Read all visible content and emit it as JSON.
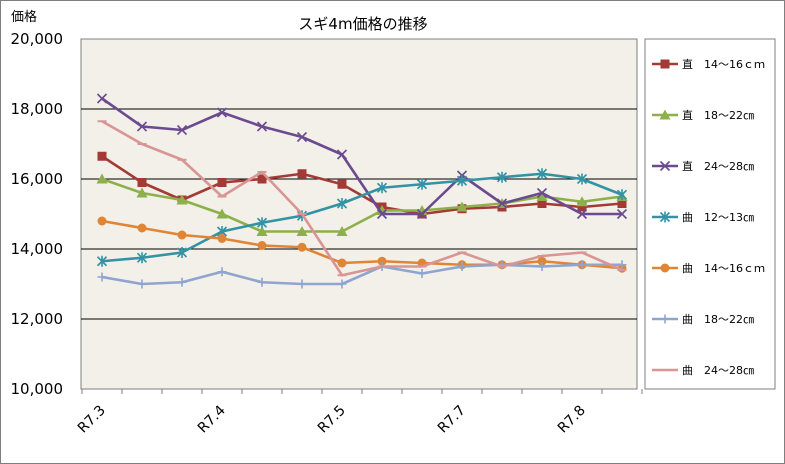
{
  "chart_data": {
    "type": "line",
    "title": "スギ4m価格の推移",
    "ylabel": "価格",
    "ylim": [
      10000,
      20000
    ],
    "yticks": [
      10000,
      12000,
      14000,
      16000,
      18000,
      20000
    ],
    "ytick_labels": [
      "10,000",
      "12,000",
      "14,000",
      "16,000",
      "18,000",
      "20,000"
    ],
    "x_tick_labels": [
      {
        "label": "R7.3",
        "index": 0
      },
      {
        "label": "R7.4",
        "index": 3
      },
      {
        "label": "R7.5",
        "index": 6
      },
      {
        "label": "R7.7",
        "index": 9
      },
      {
        "label": "R7.8",
        "index": 12
      }
    ],
    "n_points": 14,
    "grid": true,
    "legend_position": "right",
    "plot_background": "#f2f0e8",
    "series": [
      {
        "name": "直　14～16ｃｍ",
        "color": "#a33a36",
        "marker": "square",
        "values": [
          16650,
          15900,
          15400,
          15900,
          16000,
          16150,
          15850,
          15200,
          15000,
          15150,
          15200,
          15300,
          15200,
          15300
        ]
      },
      {
        "name": "直　18～22㎝",
        "color": "#8db04a",
        "marker": "triangle",
        "values": [
          16000,
          15600,
          15400,
          15000,
          14500,
          14500,
          14500,
          15100,
          15100,
          15200,
          15300,
          15500,
          15350,
          15500
        ]
      },
      {
        "name": "直　24～28㎝",
        "color": "#6b4a8f",
        "marker": "x",
        "values": [
          18300,
          17500,
          17400,
          17900,
          17500,
          17200,
          16700,
          15000,
          15000,
          16100,
          15300,
          15600,
          15000,
          15000
        ]
      },
      {
        "name": "曲　12～13㎝",
        "color": "#3492a5",
        "marker": "star",
        "values": [
          13650,
          13750,
          13900,
          14500,
          14750,
          14950,
          15300,
          15750,
          15850,
          15950,
          16050,
          16150,
          16000,
          15550
        ]
      },
      {
        "name": "曲　14～16ｃｍ",
        "color": "#e08535",
        "marker": "circle",
        "values": [
          14800,
          14600,
          14400,
          14300,
          14100,
          14050,
          13600,
          13650,
          13600,
          13550,
          13550,
          13650,
          13550,
          13450
        ]
      },
      {
        "name": "曲　18～22㎝",
        "color": "#8fa4cf",
        "marker": "plus",
        "values": [
          13200,
          13000,
          13050,
          13350,
          13050,
          13000,
          13000,
          13500,
          13300,
          13500,
          13550,
          13500,
          13550,
          13550
        ]
      },
      {
        "name": "曲　24～28㎝",
        "color": "#d99594",
        "marker": "dash",
        "values": [
          17650,
          17000,
          16550,
          15500,
          16200,
          15000,
          13250,
          13500,
          13500,
          13900,
          13500,
          13800,
          13900,
          13400
        ]
      }
    ]
  }
}
